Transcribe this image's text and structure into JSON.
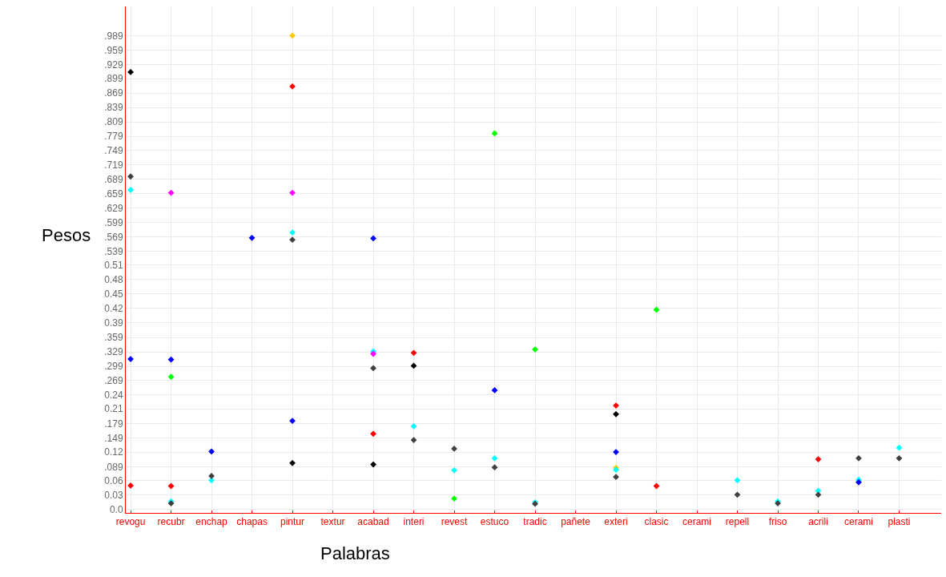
{
  "chart_data": {
    "type": "scatter",
    "xlabel": "Palabras",
    "ylabel": "Pesos",
    "categories": [
      "revogu",
      "recubr",
      "enchap",
      "chapas",
      "pintur",
      "textur",
      "acabad",
      "interi",
      "revest",
      "estuco",
      "tradic",
      "pañete",
      "exteri",
      "clasic",
      "cerami",
      "repell",
      "friso",
      "acrili",
      "cerami",
      "plasti"
    ],
    "ylim": [
      -0.007,
      1.05
    ],
    "yticks": [
      {
        "value": 0,
        "label": "0.0"
      },
      0.03,
      0.06,
      {
        "value": 0.089,
        "label": ".089"
      },
      0.12,
      {
        "value": 0.149,
        "label": ".149"
      },
      {
        "value": 0.179,
        "label": ".179"
      },
      0.21,
      0.24,
      {
        "value": 0.269,
        "label": ".269"
      },
      {
        "value": 0.299,
        "label": ".299"
      },
      {
        "value": 0.329,
        "label": ".329"
      },
      {
        "value": 0.359,
        "label": ".359"
      },
      0.39,
      0.42,
      0.45,
      0.48,
      0.51,
      {
        "value": 0.539,
        "label": ".539"
      },
      {
        "value": 0.569,
        "label": ".569"
      },
      {
        "value": 0.599,
        "label": ".599"
      },
      {
        "value": 0.629,
        "label": ".629"
      },
      {
        "value": 0.659,
        "label": ".659"
      },
      {
        "value": 0.689,
        "label": ".689"
      },
      {
        "value": 0.719,
        "label": ".719"
      },
      {
        "value": 0.749,
        "label": ".749"
      },
      {
        "value": 0.779,
        "label": ".779"
      },
      {
        "value": 0.809,
        "label": ".809"
      },
      {
        "value": 0.839,
        "label": ".839"
      },
      {
        "value": 0.869,
        "label": ".869"
      },
      {
        "value": 0.899,
        "label": ".899"
      },
      {
        "value": 0.929,
        "label": ".929"
      },
      {
        "value": 0.959,
        "label": ".959"
      },
      {
        "value": 0.989,
        "label": ".989"
      }
    ],
    "grid": true,
    "marker": "diamond",
    "series": [
      {
        "color": "#000000",
        "values": [
          0.913,
          null,
          null,
          null,
          0.097,
          null,
          0.094,
          0.3,
          null,
          null,
          null,
          null,
          0.199,
          null,
          null,
          null,
          null,
          null,
          null,
          null
        ]
      },
      {
        "color": "#ffc800",
        "values": [
          null,
          null,
          null,
          null,
          0.989,
          null,
          null,
          null,
          null,
          null,
          null,
          null,
          0.087,
          null,
          null,
          null,
          null,
          null,
          null,
          null
        ]
      },
      {
        "color": "#00ffff",
        "values": [
          0.667,
          0.017,
          0.061,
          null,
          0.578,
          null,
          0.33,
          0.174,
          0.082,
          0.107,
          0.015,
          null,
          0.083,
          null,
          null,
          0.061,
          0.017,
          0.039,
          0.062,
          0.129
        ]
      },
      {
        "color": "#ff00ff",
        "values": [
          null,
          0.661,
          null,
          null,
          0.661,
          null,
          0.325,
          null,
          null,
          null,
          null,
          null,
          null,
          null,
          null,
          null,
          null,
          null,
          null,
          null
        ]
      },
      {
        "color": "#0000ff",
        "values": [
          0.314,
          0.313,
          0.121,
          0.567,
          0.185,
          null,
          0.566,
          null,
          null,
          0.249,
          null,
          null,
          0.12,
          null,
          null,
          null,
          null,
          null,
          0.057,
          null
        ]
      },
      {
        "color": "#ff0000",
        "values": [
          0.05,
          0.049,
          null,
          null,
          0.883,
          null,
          0.158,
          0.327,
          null,
          null,
          null,
          null,
          0.217,
          0.049,
          null,
          null,
          null,
          0.105,
          null,
          null
        ]
      },
      {
        "color": "#00ff00",
        "values": [
          null,
          0.277,
          null,
          null,
          null,
          null,
          null,
          null,
          0.023,
          0.785,
          0.334,
          null,
          null,
          0.417,
          null,
          null,
          null,
          null,
          null,
          null
        ]
      },
      {
        "color": "#404040",
        "values": [
          0.695,
          0.013,
          0.07,
          null,
          0.563,
          null,
          0.295,
          0.145,
          0.127,
          0.088,
          0.012,
          null,
          0.068,
          null,
          null,
          0.031,
          0.013,
          0.031,
          0.107,
          0.107
        ]
      }
    ]
  }
}
